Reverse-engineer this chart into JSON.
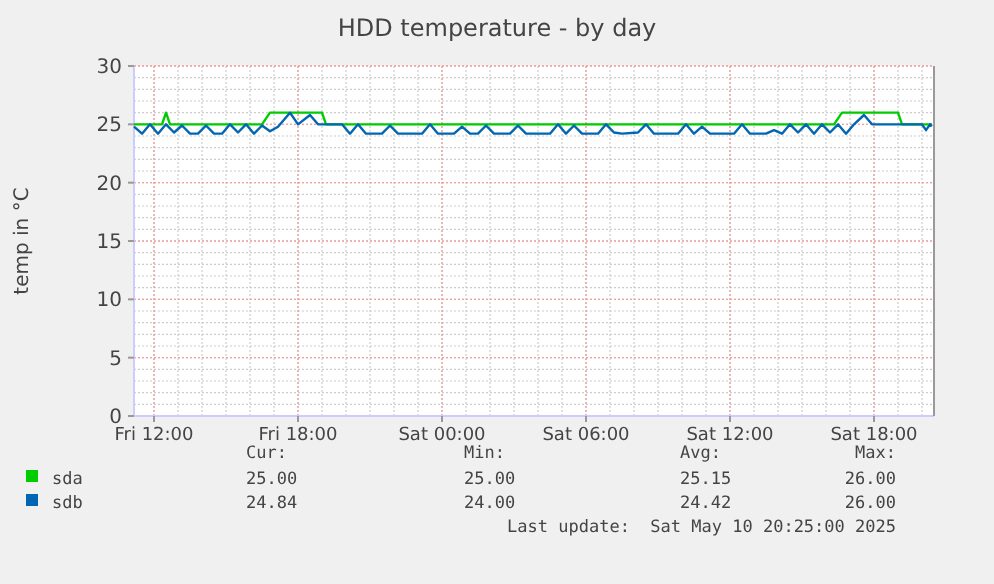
{
  "chart_data": {
    "type": "line",
    "title": "HDD temperature - by day",
    "ylabel": "temp in °C",
    "xlim": [
      "2025-05-09T11:10",
      "2025-05-10T20:30"
    ],
    "xticks": [
      {
        "value": "2025-05-09T12:00",
        "label": "Fri 12:00"
      },
      {
        "value": "2025-05-09T18:00",
        "label": "Fri 18:00"
      },
      {
        "value": "2025-05-10T00:00",
        "label": "Sat 00:00"
      },
      {
        "value": "2025-05-10T06:00",
        "label": "Sat 06:00"
      },
      {
        "value": "2025-05-10T12:00",
        "label": "Sat 12:00"
      },
      {
        "value": "2025-05-10T18:00",
        "label": "Sat 18:00"
      }
    ],
    "ylim": [
      0,
      30
    ],
    "yticks": [
      0,
      5,
      10,
      15,
      20,
      25,
      30
    ],
    "grid": true,
    "legend": "bottom left",
    "marker": "none",
    "line_style": "solid",
    "series": [
      {
        "name": "sda",
        "color": "#00cc00",
        "x": [
          "2025-05-09T11:10",
          "2025-05-09T12:20",
          "2025-05-09T12:30",
          "2025-05-09T12:40",
          "2025-05-09T16:30",
          "2025-05-09T16:50",
          "2025-05-09T19:00",
          "2025-05-09T19:10",
          "2025-05-10T16:20",
          "2025-05-10T16:40",
          "2025-05-10T19:00",
          "2025-05-10T19:10",
          "2025-05-10T20:25"
        ],
        "values": [
          25,
          25,
          26,
          25,
          25,
          26,
          26,
          25,
          25,
          26,
          26,
          25,
          25
        ]
      },
      {
        "name": "sdb",
        "color": "#0066b3",
        "x": [
          "2025-05-09T11:10",
          "2025-05-09T11:30",
          "2025-05-09T11:50",
          "2025-05-09T12:10",
          "2025-05-09T12:30",
          "2025-05-09T12:50",
          "2025-05-09T13:10",
          "2025-05-09T13:30",
          "2025-05-09T13:50",
          "2025-05-09T14:10",
          "2025-05-09T14:30",
          "2025-05-09T14:50",
          "2025-05-09T15:10",
          "2025-05-09T15:30",
          "2025-05-09T15:50",
          "2025-05-09T16:10",
          "2025-05-09T16:30",
          "2025-05-09T16:50",
          "2025-05-09T17:10",
          "2025-05-09T17:40",
          "2025-05-09T18:00",
          "2025-05-09T18:30",
          "2025-05-09T18:50",
          "2025-05-09T19:50",
          "2025-05-09T20:10",
          "2025-05-09T20:30",
          "2025-05-09T20:50",
          "2025-05-09T21:30",
          "2025-05-09T21:50",
          "2025-05-09T22:10",
          "2025-05-09T23:10",
          "2025-05-09T23:30",
          "2025-05-09T23:50",
          "2025-05-10T00:30",
          "2025-05-10T00:50",
          "2025-05-10T01:10",
          "2025-05-10T01:30",
          "2025-05-10T01:50",
          "2025-05-10T02:10",
          "2025-05-10T02:50",
          "2025-05-10T03:10",
          "2025-05-10T03:30",
          "2025-05-10T04:30",
          "2025-05-10T04:50",
          "2025-05-10T05:10",
          "2025-05-10T05:30",
          "2025-05-10T05:50",
          "2025-05-10T06:30",
          "2025-05-10T06:50",
          "2025-05-10T07:10",
          "2025-05-10T07:30",
          "2025-05-10T08:10",
          "2025-05-10T08:30",
          "2025-05-10T08:50",
          "2025-05-10T09:50",
          "2025-05-10T10:10",
          "2025-05-10T10:30",
          "2025-05-10T10:50",
          "2025-05-10T11:10",
          "2025-05-10T12:10",
          "2025-05-10T12:30",
          "2025-05-10T12:50",
          "2025-05-10T13:30",
          "2025-05-10T13:50",
          "2025-05-10T14:10",
          "2025-05-10T14:30",
          "2025-05-10T14:50",
          "2025-05-10T15:10",
          "2025-05-10T15:30",
          "2025-05-10T15:50",
          "2025-05-10T16:10",
          "2025-05-10T16:30",
          "2025-05-10T16:50",
          "2025-05-10T17:10",
          "2025-05-10T17:35",
          "2025-05-10T17:55",
          "2025-05-10T20:00",
          "2025-05-10T20:10",
          "2025-05-10T20:20",
          "2025-05-10T20:25"
        ],
        "values": [
          24.8,
          24.2,
          25,
          24.2,
          25,
          24.3,
          24.9,
          24.2,
          24.2,
          24.9,
          24.2,
          24.2,
          25,
          24.3,
          25,
          24.2,
          24.9,
          24.4,
          24.8,
          26,
          25,
          25.8,
          25,
          25,
          24.2,
          25,
          24.2,
          24.2,
          24.9,
          24.2,
          24.2,
          25,
          24.2,
          24.2,
          24.8,
          24.2,
          24.2,
          24.9,
          24.2,
          24.2,
          24.9,
          24.2,
          24.2,
          25,
          24.2,
          24.9,
          24.2,
          24.2,
          25,
          24.3,
          24.2,
          24.3,
          25,
          24.2,
          24.2,
          25,
          24.2,
          24.8,
          24.2,
          24.2,
          25,
          24.2,
          24.2,
          24.5,
          24.2,
          25,
          24.3,
          25,
          24.2,
          25,
          24.3,
          25,
          24.2,
          25,
          25.8,
          25,
          25,
          24.5,
          25,
          24.84
        ]
      }
    ],
    "annotations": [
      "Cur:",
      "Min:",
      "Avg:",
      "Max:",
      "25.00",
      "25.00",
      "25.15",
      "26.00",
      "24.84",
      "24.00",
      "24.42",
      "26.00",
      "Last update:  Sat May 10 20:25:00 2025"
    ]
  }
}
